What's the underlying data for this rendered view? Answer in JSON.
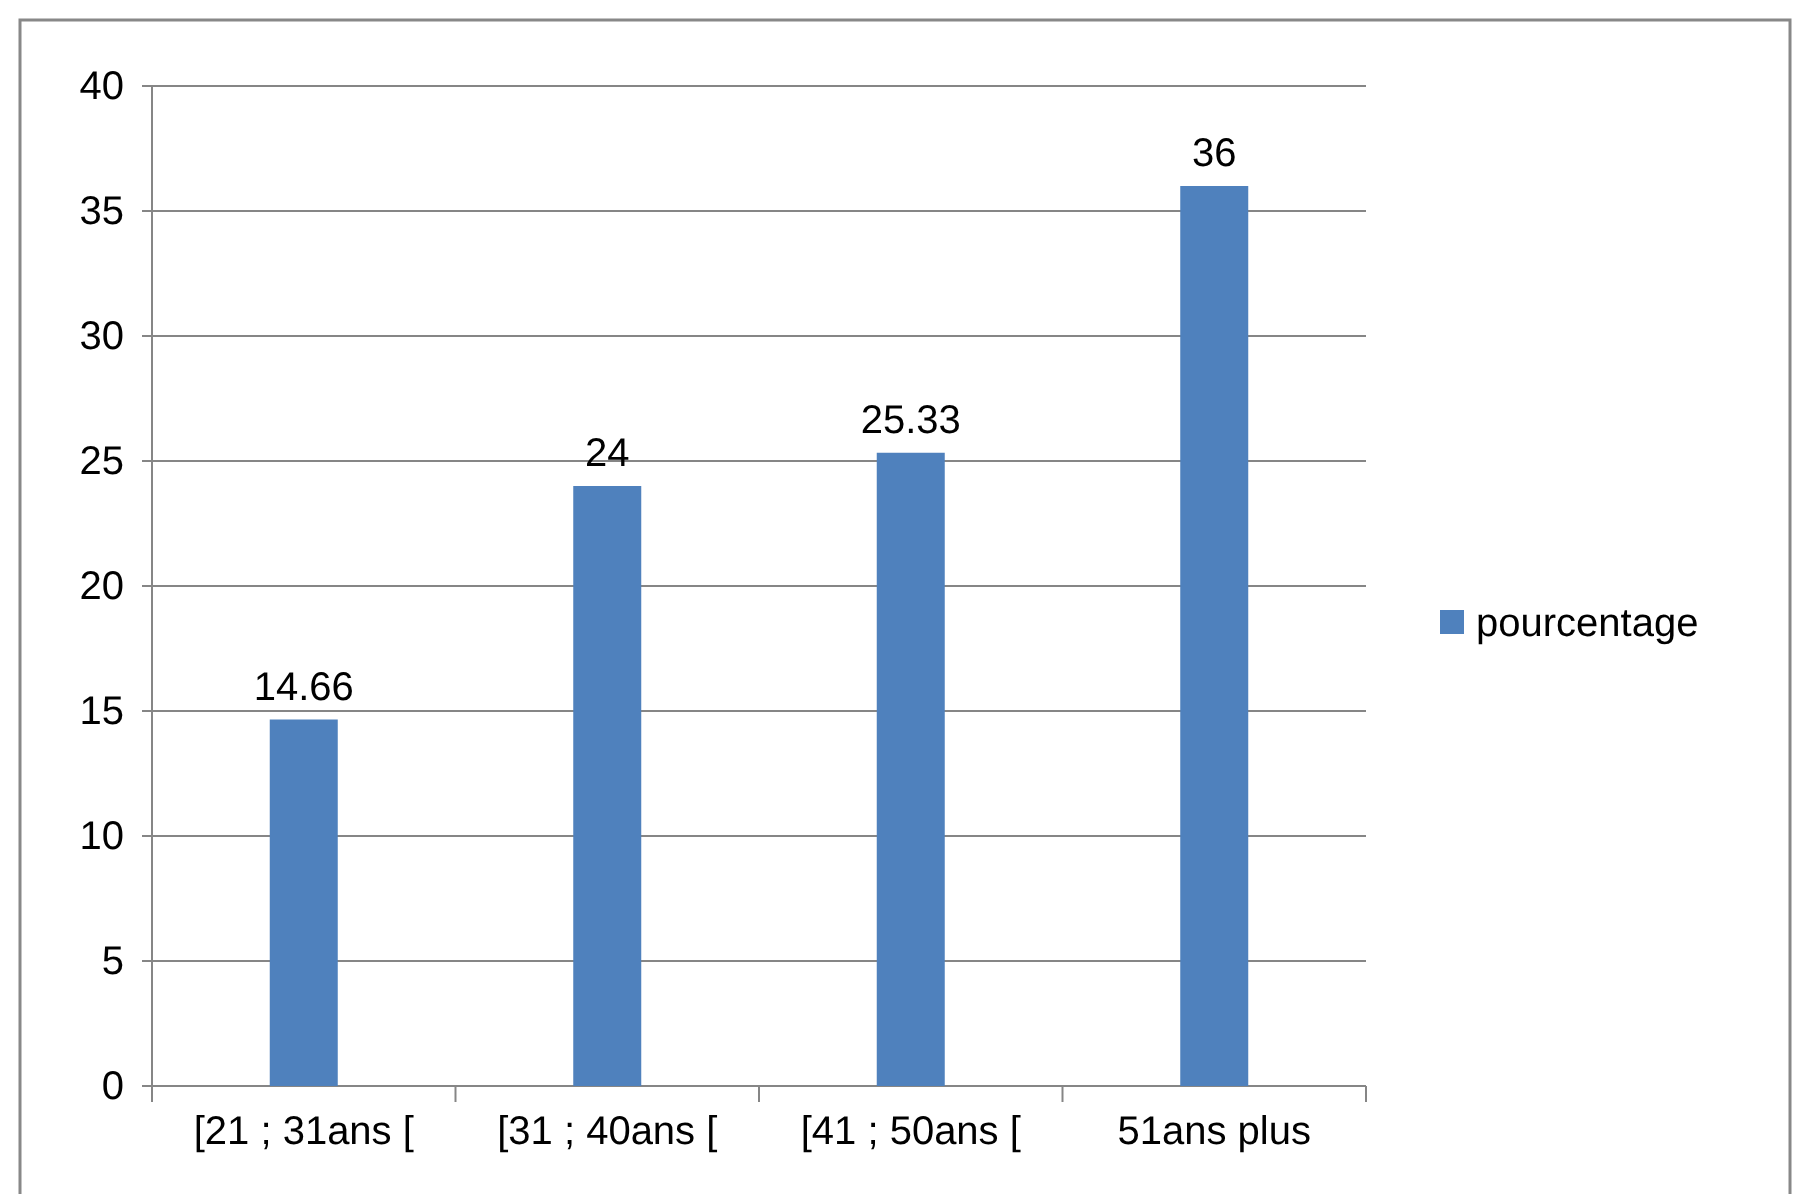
{
  "chart_data": {
    "type": "bar",
    "categories": [
      "[21 ; 31ans [",
      "[31 ; 40ans [",
      "[41 ; 50ans [",
      "51ans plus"
    ],
    "series": [
      {
        "name": "pourcentage",
        "color": "#4f81bd",
        "values": [
          14.66,
          24,
          25.33,
          36
        ]
      }
    ],
    "ylim": [
      0,
      40
    ],
    "yticks": [
      0,
      5,
      10,
      15,
      20,
      25,
      30,
      35,
      40
    ],
    "grid": "y",
    "legend": "right",
    "data_labels": true
  }
}
